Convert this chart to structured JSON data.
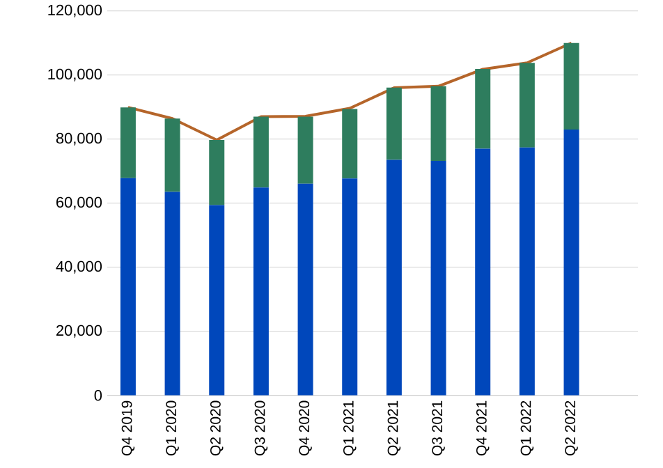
{
  "chart_data": {
    "type": "bar",
    "stacked": true,
    "categories": [
      "Q4 2019",
      "Q1 2020",
      "Q2 2020",
      "Q3 2020",
      "Q4 2020",
      "Q1 2021",
      "Q2 2021",
      "Q3 2021",
      "Q4 2021",
      "Q1 2022",
      "Q2 2022"
    ],
    "series": [
      {
        "color": "#0047bb",
        "values": [
          67800,
          63500,
          59400,
          64900,
          66100,
          67700,
          73500,
          73200,
          77000,
          77400,
          83000
        ]
      },
      {
        "color": "#2e7d5e",
        "values": [
          22100,
          22900,
          20300,
          22100,
          20900,
          21700,
          22600,
          23300,
          24900,
          26400,
          27000
        ]
      },
      {
        "type": "line",
        "color": "#b5652a",
        "values": [
          89900,
          86400,
          79700,
          87000,
          87100,
          89600,
          96000,
          96500,
          101800,
          103800,
          110000
        ]
      }
    ],
    "ylim": [
      0,
      120000
    ],
    "yticks": [
      0,
      {
        "value": 20000,
        "label": "20,000"
      },
      {
        "value": 40000,
        "label": "40,000"
      },
      {
        "value": 60000,
        "label": "60,000"
      },
      {
        "value": 80000,
        "label": "80,000"
      },
      {
        "value": 100000,
        "label": "100,000"
      },
      {
        "value": 120000,
        "label": "120,000"
      }
    ],
    "grid": "y"
  }
}
